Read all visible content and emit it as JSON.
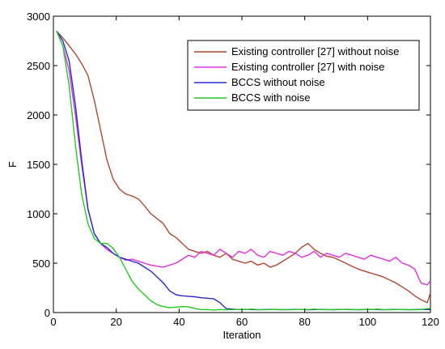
{
  "chart_data": {
    "type": "line",
    "title": "",
    "xlabel": "Iteration",
    "ylabel": "F",
    "xlim": [
      0,
      120
    ],
    "ylim": [
      0,
      3000
    ],
    "xticks": [
      0,
      20,
      40,
      60,
      80,
      100,
      120
    ],
    "yticks": [
      0,
      500,
      1000,
      1500,
      2000,
      2500,
      3000
    ],
    "grid": false,
    "legend_position": "top-right",
    "series": [
      {
        "name": "Existing controller [27] without noise",
        "color": "#b5462f",
        "x": [
          1,
          3,
          5,
          7,
          9,
          11,
          13,
          15,
          17,
          19,
          21,
          23,
          25,
          27,
          29,
          31,
          33,
          35,
          37,
          39,
          41,
          43,
          45,
          47,
          49,
          51,
          53,
          55,
          57,
          59,
          61,
          63,
          65,
          67,
          69,
          71,
          73,
          75,
          77,
          79,
          81,
          83,
          85,
          87,
          89,
          91,
          93,
          95,
          97,
          99,
          101,
          103,
          105,
          107,
          109,
          111,
          113,
          115,
          117,
          119,
          120
        ],
        "y": [
          2850,
          2780,
          2700,
          2620,
          2520,
          2400,
          2150,
          1850,
          1550,
          1350,
          1250,
          1200,
          1180,
          1150,
          1080,
          1000,
          950,
          900,
          800,
          760,
          700,
          640,
          620,
          600,
          620,
          580,
          560,
          600,
          540,
          520,
          500,
          520,
          480,
          500,
          460,
          480,
          520,
          560,
          600,
          660,
          700,
          640,
          600,
          570,
          560,
          530,
          500,
          470,
          440,
          420,
          400,
          380,
          360,
          330,
          300,
          260,
          220,
          170,
          130,
          100,
          200
        ]
      },
      {
        "name": "Existing controller [27] with noise",
        "color": "#e030e0",
        "x": [
          1,
          3,
          5,
          7,
          9,
          11,
          13,
          15,
          17,
          19,
          21,
          23,
          25,
          27,
          29,
          31,
          33,
          35,
          37,
          39,
          41,
          43,
          45,
          47,
          49,
          51,
          53,
          55,
          57,
          59,
          61,
          63,
          65,
          67,
          69,
          71,
          73,
          75,
          77,
          79,
          81,
          83,
          85,
          87,
          89,
          91,
          93,
          95,
          97,
          99,
          101,
          103,
          105,
          107,
          109,
          111,
          113,
          115,
          117,
          119,
          120
        ],
        "y": [
          2850,
          2700,
          2450,
          2000,
          1500,
          1050,
          800,
          700,
          640,
          600,
          560,
          530,
          540,
          520,
          500,
          480,
          470,
          460,
          480,
          500,
          540,
          580,
          560,
          620,
          600,
          580,
          640,
          600,
          560,
          620,
          600,
          640,
          580,
          560,
          620,
          600,
          580,
          620,
          600,
          560,
          580,
          620,
          560,
          600,
          580,
          560,
          600,
          580,
          560,
          540,
          580,
          560,
          540,
          520,
          560,
          500,
          480,
          440,
          300,
          280,
          320
        ]
      },
      {
        "name": "BCCS without noise",
        "color": "#2a2ad0",
        "x": [
          1,
          3,
          5,
          7,
          9,
          11,
          13,
          15,
          17,
          19,
          21,
          23,
          25,
          27,
          29,
          31,
          33,
          35,
          37,
          39,
          41,
          43,
          45,
          47,
          49,
          51,
          53,
          55,
          57,
          59,
          61,
          63,
          65,
          67,
          69,
          71,
          73,
          75,
          77,
          79,
          81,
          83,
          85,
          87,
          89,
          91,
          93,
          95,
          97,
          99,
          101,
          103,
          105,
          107,
          109,
          111,
          113,
          115,
          117,
          119,
          120
        ],
        "y": [
          2850,
          2750,
          2550,
          2100,
          1550,
          1050,
          800,
          700,
          660,
          600,
          560,
          540,
          520,
          500,
          460,
          420,
          360,
          300,
          220,
          180,
          170,
          165,
          160,
          150,
          145,
          140,
          100,
          40,
          35,
          30,
          32,
          30,
          28,
          30,
          32,
          30,
          28,
          30,
          32,
          30,
          28,
          30,
          32,
          30,
          28,
          30,
          32,
          30,
          28,
          30,
          32,
          30,
          28,
          30,
          32,
          30,
          28,
          30,
          32,
          30,
          30
        ]
      },
      {
        "name": "BCCS with noise",
        "color": "#22cc22",
        "x": [
          1,
          3,
          5,
          7,
          9,
          11,
          13,
          15,
          17,
          19,
          21,
          23,
          25,
          27,
          29,
          31,
          33,
          35,
          37,
          39,
          41,
          43,
          45,
          47,
          49,
          51,
          53,
          55,
          57,
          59,
          61,
          63,
          65,
          67,
          69,
          71,
          73,
          75,
          77,
          79,
          81,
          83,
          85,
          87,
          89,
          91,
          93,
          95,
          97,
          99,
          101,
          103,
          105,
          107,
          109,
          111,
          113,
          115,
          117,
          119,
          120
        ],
        "y": [
          2850,
          2700,
          2300,
          1700,
          1200,
          900,
          750,
          700,
          700,
          650,
          560,
          440,
          320,
          240,
          180,
          120,
          80,
          60,
          50,
          55,
          60,
          58,
          40,
          30,
          30,
          25,
          30,
          28,
          30,
          32,
          30,
          35,
          30,
          28,
          30,
          32,
          30,
          28,
          30,
          32,
          30,
          35,
          30,
          28,
          30,
          32,
          30,
          28,
          30,
          32,
          30,
          35,
          30,
          28,
          30,
          32,
          30,
          28,
          30,
          40,
          40
        ]
      }
    ]
  }
}
